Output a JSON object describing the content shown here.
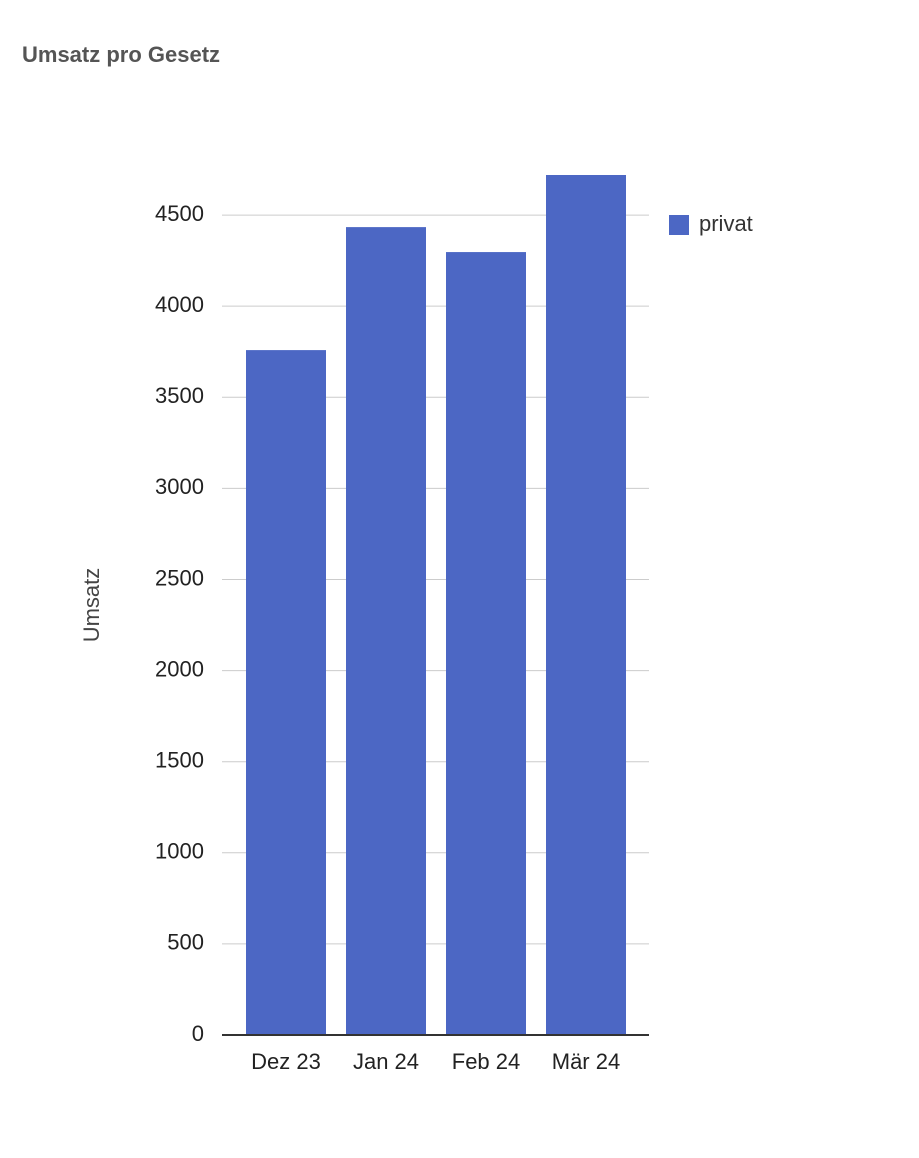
{
  "chart_data": {
    "type": "bar",
    "title": "Umsatz pro Gesetz",
    "y_label": "Umsatz",
    "categories": [
      "Dez 23",
      "Jan 24",
      "Feb 24",
      "Mär 24"
    ],
    "series": [
      {
        "name": "privat",
        "color": "#4c67c4",
        "values": [
          3759,
          4434,
          4297,
          4720
        ]
      }
    ],
    "ylim": [
      0,
      4720
    ],
    "yticks": [
      0,
      500,
      1000,
      1500,
      2000,
      2500,
      3000,
      3500,
      4000,
      4500
    ],
    "grid": true,
    "legend": "right"
  }
}
